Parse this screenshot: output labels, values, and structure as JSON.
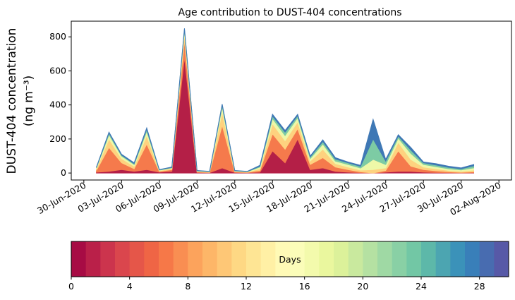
{
  "chart_data": {
    "type": "stacked-area",
    "title": "Age contribution to DUST-404 concentrations",
    "ylabel": [
      "DUST-404 concentration",
      "(ng m⁻³)"
    ],
    "x": [
      "2020-07-01",
      "2020-07-02",
      "2020-07-03",
      "2020-07-04",
      "2020-07-05",
      "2020-07-06",
      "2020-07-07",
      "2020-07-08",
      "2020-07-09",
      "2020-07-10",
      "2020-07-11",
      "2020-07-12",
      "2020-07-13",
      "2020-07-14",
      "2020-07-15",
      "2020-07-16",
      "2020-07-17",
      "2020-07-18",
      "2020-07-19",
      "2020-07-20",
      "2020-07-21",
      "2020-07-22",
      "2020-07-23",
      "2020-07-24",
      "2020-07-25",
      "2020-07-26",
      "2020-07-27",
      "2020-07-28",
      "2020-07-29",
      "2020-07-30",
      "2020-07-31"
    ],
    "series": [
      {
        "color": "#b41f47",
        "values": [
          5,
          10,
          20,
          10,
          20,
          5,
          10,
          680,
          3,
          2,
          30,
          3,
          2,
          5,
          130,
          60,
          200,
          20,
          30,
          10,
          5,
          2,
          0,
          5,
          10,
          10,
          5,
          3,
          2,
          1,
          2
        ]
      },
      {
        "color": "#f57a4c",
        "values": [
          10,
          140,
          40,
          15,
          150,
          5,
          10,
          100,
          4,
          2,
          250,
          4,
          2,
          10,
          100,
          80,
          60,
          30,
          60,
          25,
          15,
          5,
          0,
          10,
          120,
          30,
          15,
          10,
          5,
          3,
          5
        ]
      },
      {
        "color": "#fed27f",
        "values": [
          10,
          50,
          25,
          15,
          50,
          4,
          6,
          40,
          3,
          2,
          80,
          3,
          2,
          10,
          60,
          50,
          40,
          20,
          50,
          20,
          15,
          10,
          20,
          15,
          50,
          40,
          15,
          12,
          8,
          6,
          10
        ]
      },
      {
        "color": "#eef8a8",
        "values": [
          5,
          25,
          15,
          10,
          25,
          3,
          4,
          20,
          2,
          2,
          30,
          2,
          2,
          10,
          30,
          30,
          25,
          15,
          30,
          15,
          15,
          12,
          60,
          20,
          25,
          35,
          15,
          12,
          10,
          8,
          13
        ]
      },
      {
        "color": "#7dcba4",
        "values": [
          3,
          10,
          5,
          5,
          12,
          2,
          3,
          5,
          2,
          1,
          10,
          2,
          1,
          5,
          15,
          20,
          12,
          10,
          15,
          12,
          10,
          10,
          120,
          20,
          12,
          20,
          10,
          10,
          8,
          7,
          12
        ]
      },
      {
        "color": "#3f78b5",
        "values": [
          2,
          5,
          5,
          5,
          8,
          1,
          2,
          5,
          1,
          1,
          5,
          1,
          1,
          5,
          10,
          10,
          8,
          5,
          10,
          8,
          5,
          6,
          115,
          10,
          8,
          15,
          5,
          8,
          7,
          5,
          8
        ]
      }
    ],
    "xlim": [
      "2020-06-29",
      "2020-08-03"
    ],
    "xticks": [
      {
        "value": "2020-06-30",
        "label": "30-Jun-2020"
      },
      {
        "value": "2020-07-03",
        "label": "03-Jul-2020"
      },
      {
        "value": "2020-07-06",
        "label": "06-Jul-2020"
      },
      {
        "value": "2020-07-09",
        "label": "09-Jul-2020"
      },
      {
        "value": "2020-07-12",
        "label": "12-Jul-2020"
      },
      {
        "value": "2020-07-15",
        "label": "15-Jul-2020"
      },
      {
        "value": "2020-07-18",
        "label": "18-Jul-2020"
      },
      {
        "value": "2020-07-21",
        "label": "21-Jul-2020"
      },
      {
        "value": "2020-07-24",
        "label": "24-Jul-2020"
      },
      {
        "value": "2020-07-27",
        "label": "27-Jul-2020"
      },
      {
        "value": "2020-07-30",
        "label": "30-Jul-2020"
      },
      {
        "value": "2020-08-02",
        "label": "02-Aug-2020"
      }
    ],
    "ylim": [
      -41,
      892
    ],
    "yticks": [
      0,
      200,
      400,
      600,
      800
    ],
    "colorbar": {
      "label": "Days",
      "lim": [
        0,
        30
      ],
      "ticks": [
        0,
        4,
        8,
        12,
        16,
        20,
        24,
        28
      ],
      "colormap": [
        "#9e0142",
        "#d53e4f",
        "#f46d43",
        "#fdae61",
        "#fee08b",
        "#ffffbf",
        "#e6f598",
        "#abdda4",
        "#66c2a5",
        "#3288bd",
        "#5e4fa2"
      ]
    }
  }
}
